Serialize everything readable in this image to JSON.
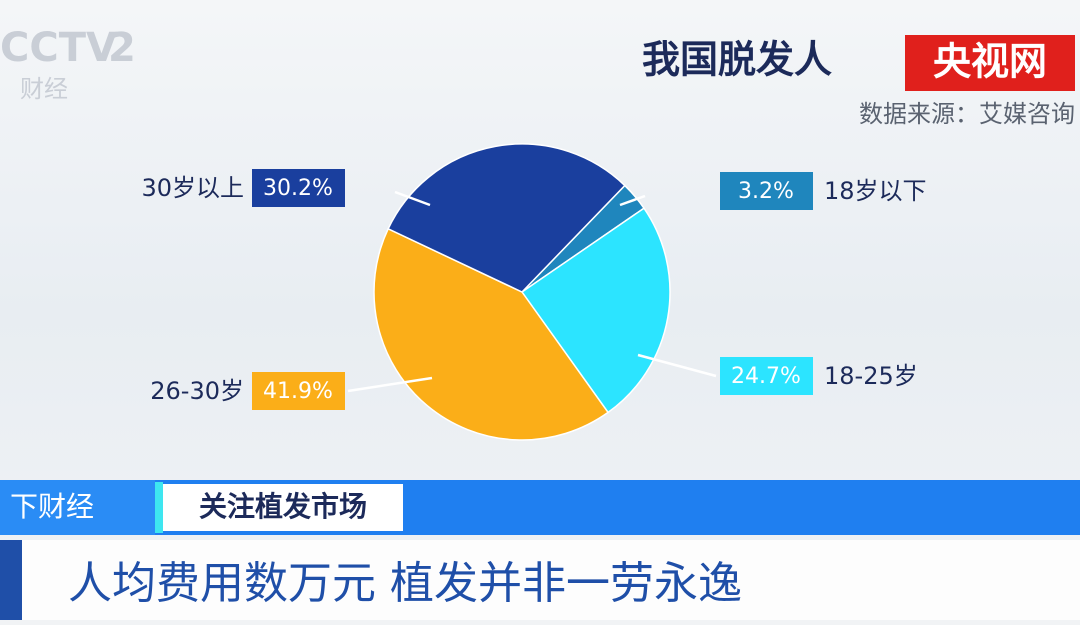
{
  "chart_data": {
    "type": "pie",
    "title": "我国脱发人",
    "source": "数据来源：艾媒咨询",
    "categories": [
      "18岁以下",
      "18-25岁",
      "26-30岁",
      "30岁以上"
    ],
    "values": [
      3.2,
      24.7,
      41.9,
      30.2
    ],
    "value_labels": [
      "3.2%",
      "24.7%",
      "41.9%",
      "30.2%"
    ],
    "colors": [
      "#1f86bd",
      "#2ce4ff",
      "#fbae18",
      "#1a3f9e"
    ]
  },
  "logo": {
    "brand": "CCTV",
    "channel": "2",
    "channel_name": "财经"
  },
  "watermark": "央视网",
  "banner": {
    "program": "下财经",
    "topic": "关注植发市场"
  },
  "headline": "人均费用数万元 植发并非一劳永逸"
}
